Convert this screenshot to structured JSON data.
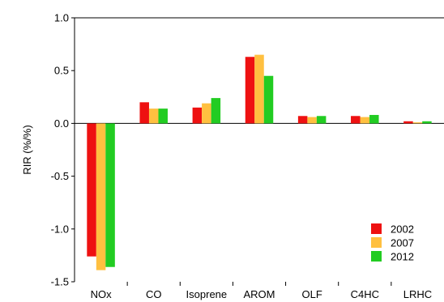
{
  "chart_data": {
    "type": "bar",
    "categories": [
      "NOx",
      "CO",
      "Isoprene",
      "AROM",
      "OLF",
      "C4HC",
      "LRHC"
    ],
    "series": [
      {
        "name": "2002",
        "color": "#ee1111",
        "values": [
          -1.26,
          0.2,
          0.15,
          0.63,
          0.07,
          0.07,
          0.02
        ]
      },
      {
        "name": "2007",
        "color": "#ffc040",
        "values": [
          -1.39,
          0.14,
          0.19,
          0.65,
          0.06,
          0.06,
          0.01
        ]
      },
      {
        "name": "2012",
        "color": "#22cc22",
        "values": [
          -1.36,
          0.14,
          0.24,
          0.45,
          0.07,
          0.08,
          0.02
        ]
      }
    ],
    "ylabel": "RIR (%/%)",
    "xlabel": "",
    "ylim": [
      -1.5,
      1.0
    ],
    "yticks": [
      1.0,
      0.5,
      0.0,
      -0.5,
      -1.0,
      -1.5
    ],
    "ytick_labels": [
      "1.0",
      "0.5",
      "0.0",
      "-0.5",
      "-1.0",
      "-1.5"
    ],
    "grid": false,
    "legend_position": "bottom-right"
  }
}
